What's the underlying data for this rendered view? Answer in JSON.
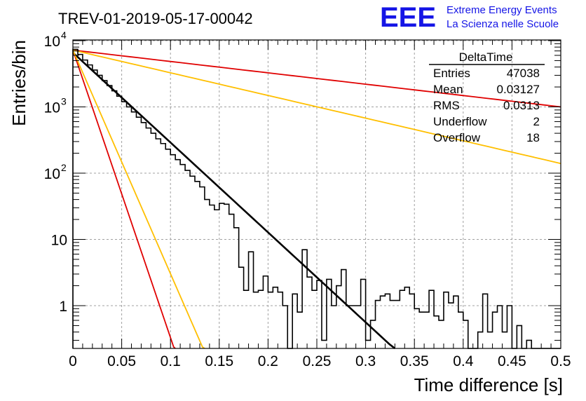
{
  "page": {
    "title": "TREV-01-2019-05-17-00042",
    "logo": {
      "text": "EEE",
      "line1": "Extreme Energy Events",
      "line2": "La Scienza nelle Scuole"
    }
  },
  "colors": {
    "histogram": "#000000",
    "fit": "#000000",
    "red_curve": "#e00000",
    "orange_curve": "#ffbf00",
    "logo": "#1515e6",
    "grid": "#a0a0a0"
  },
  "chart_data": {
    "type": "line",
    "xlabel": "Time difference [s]",
    "ylabel": "Entries/bin",
    "xlim": [
      0,
      0.5
    ],
    "ylim": [
      0.25,
      12000
    ],
    "yscale": "log",
    "grid": true,
    "x_ticks": [
      0,
      0.05,
      0.1,
      0.15,
      0.2,
      0.25,
      0.3,
      0.35,
      0.4,
      0.45,
      0.5
    ],
    "x_tick_labels": [
      "0",
      "0.05",
      "0.1",
      "0.15",
      "0.2",
      "0.25",
      "0.3",
      "0.35",
      "0.4",
      "0.45",
      "0.5"
    ],
    "y_ticks": [
      1,
      10,
      100,
      1000,
      10000
    ],
    "y_tick_labels": [
      {
        "base": "1",
        "exp": ""
      },
      {
        "base": "10",
        "exp": ""
      },
      {
        "base": "10",
        "exp": "2"
      },
      {
        "base": "10",
        "exp": "3"
      },
      {
        "base": "10",
        "exp": "4"
      }
    ],
    "stats": {
      "title": "DeltaTime",
      "rows": [
        {
          "label": "Entries",
          "value": "47038"
        },
        {
          "label": "Mean",
          "value": "0.03127"
        },
        {
          "label": "RMS",
          "value": "0.0313"
        },
        {
          "label": "Underflow",
          "value": "2"
        },
        {
          "label": "Overflow",
          "value": "18"
        }
      ]
    },
    "histogram": {
      "bin_width": 0.005,
      "bin_start": 0,
      "counts": [
        7400,
        6200,
        5100,
        4300,
        3600,
        3000,
        2500,
        2100,
        1750,
        1450,
        1200,
        1000,
        840,
        700,
        580,
        480,
        400,
        330,
        280,
        230,
        190,
        160,
        135,
        110,
        90,
        75,
        62,
        40,
        33,
        28,
        35,
        34,
        24,
        15,
        3.8,
        1.7,
        6.5,
        1.6,
        1.7,
        2.8,
        1.6,
        1.9,
        1.6,
        1,
        0.2,
        1.5,
        0.8,
        7,
        2.7,
        1.7,
        2.4,
        0.3,
        2.5,
        1,
        2,
        3.5,
        1,
        1,
        1,
        2.5,
        0.3,
        0.6,
        1.2,
        1.4,
        1.5,
        1.2,
        1.2,
        1.7,
        1.9,
        1.5,
        0.9,
        0.8,
        0.8,
        1.7,
        0.7,
        0.6,
        1.6,
        1.1,
        1.4,
        0.8,
        0.6,
        0.2,
        0.2,
        0.4,
        1.5,
        0.4,
        0.8,
        1,
        0.4,
        1,
        0.2,
        0.5,
        0.2,
        0.3,
        0.2,
        0.1,
        0.2,
        0.1,
        0.1,
        0.1
      ]
    },
    "series": [
      {
        "points": [
          [
            0,
            6600
          ],
          [
            0.33,
            0.22
          ]
        ]
      },
      {
        "points": [
          [
            0,
            7200
          ],
          [
            0.5,
            1000
          ]
        ]
      },
      {
        "points": [
          [
            0,
            7200
          ],
          [
            0.5,
            140
          ]
        ]
      },
      {
        "points": [
          [
            0,
            7200
          ],
          [
            0.105,
            0.2
          ]
        ]
      },
      {
        "points": [
          [
            0,
            7200
          ],
          [
            0.135,
            0.2
          ]
        ]
      }
    ]
  }
}
